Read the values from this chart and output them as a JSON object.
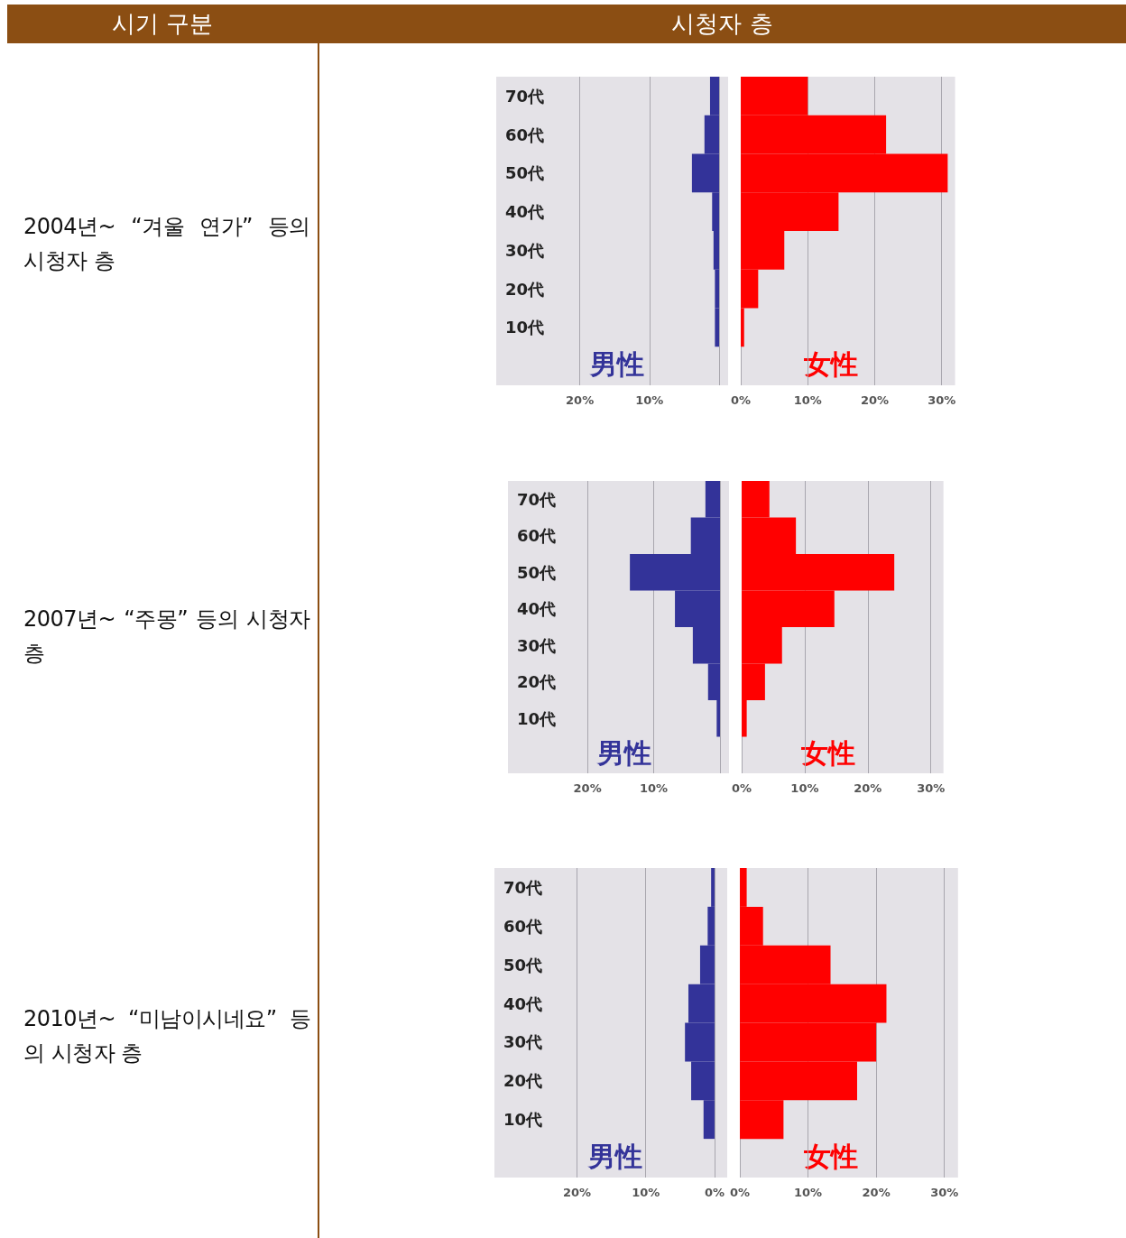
{
  "chart_data": [
    {
      "type": "other",
      "annotations": [
        "시기 구분",
        "시청자 층",
        "2004년~ “겨울 연가” 등의 시청자 층",
        "2007년~ “주몽” 등의 시청자 층",
        "2010년~ “미남이시네요” 등의 시청자 층"
      ]
    },
    {
      "type": "bar",
      "orientation": "horizontal",
      "categories": [
        "70代",
        "60代",
        "50代",
        "40代",
        "30代",
        "20代",
        "10代",
        null
      ],
      "series": [
        {
          "name": "男性",
          "color": "#333399",
          "values": [
            1.3,
            2.1,
            3.9,
            1.0,
            0.8,
            0.6,
            0.6,
            null
          ]
        }
      ],
      "xlim": [
        32,
        0
      ],
      "xticks": [
        {
          "value": 20,
          "label": "20%"
        },
        {
          "value": 10,
          "label": "10%"
        },
        {
          "value": 0,
          "label": null
        }
      ],
      "grid": "x"
    },
    {
      "type": "bar",
      "orientation": "horizontal",
      "categories": [
        null,
        null,
        null,
        null,
        null,
        null,
        null,
        null
      ],
      "series": [
        {
          "name": "女性",
          "color": "#ff0000",
          "values": [
            10.0,
            21.7,
            30.9,
            14.6,
            6.5,
            2.6,
            0.5,
            null
          ]
        }
      ],
      "xlim": [
        0,
        32
      ],
      "xticks": [
        {
          "value": 0,
          "label": "0%"
        },
        {
          "value": 10,
          "label": "10%"
        },
        {
          "value": 20,
          "label": "20%"
        },
        {
          "value": 30,
          "label": "30%"
        }
      ],
      "grid": "x",
      "tick_labels": "x"
    },
    {
      "type": "bar",
      "orientation": "horizontal",
      "categories": [
        "70代",
        "60代",
        "50代",
        "40代",
        "30代",
        "20代",
        "10代",
        null
      ],
      "series": [
        {
          "name": "男性",
          "color": "#333399",
          "values": [
            2.2,
            4.4,
            13.6,
            6.8,
            4.1,
            1.8,
            0.5,
            null
          ]
        }
      ],
      "xlim": [
        32,
        0
      ],
      "xticks": [
        {
          "value": 20,
          "label": "20%"
        },
        {
          "value": 10,
          "label": "10%"
        },
        {
          "value": 0,
          "label": null
        }
      ],
      "grid": "x"
    },
    {
      "type": "bar",
      "orientation": "horizontal",
      "categories": [
        null,
        null,
        null,
        null,
        null,
        null,
        null,
        null
      ],
      "series": [
        {
          "name": "女性",
          "color": "#ff0000",
          "values": [
            4.4,
            8.6,
            24.2,
            14.7,
            6.4,
            3.7,
            0.8,
            null
          ]
        }
      ],
      "xlim": [
        0,
        32
      ],
      "xticks": [
        {
          "value": 0,
          "label": "0%"
        },
        {
          "value": 10,
          "label": "10%"
        },
        {
          "value": 20,
          "label": "20%"
        },
        {
          "value": 30,
          "label": "30%"
        }
      ],
      "grid": "x",
      "tick_labels": "x"
    },
    {
      "type": "bar",
      "orientation": "horizontal",
      "categories": [
        "70代",
        "60代",
        "50代",
        "40代",
        "30代",
        "20代",
        "10代",
        null
      ],
      "series": [
        {
          "name": "男性",
          "color": "#333399",
          "values": [
            0.5,
            1.0,
            2.1,
            3.8,
            4.3,
            3.4,
            1.6,
            null
          ]
        }
      ],
      "xlim": [
        32,
        0
      ],
      "xticks": [
        {
          "value": 20,
          "label": "20%"
        },
        {
          "value": 10,
          "label": "10%"
        },
        {
          "value": 0,
          "label": "0%"
        }
      ],
      "grid": "x"
    },
    {
      "type": "bar",
      "orientation": "horizontal",
      "categories": [
        null,
        null,
        null,
        null,
        null,
        null,
        null,
        null
      ],
      "series": [
        {
          "name": "女性",
          "color": "#ff0000",
          "values": [
            1.0,
            3.4,
            13.3,
            21.5,
            20.0,
            17.2,
            6.4,
            null
          ]
        }
      ],
      "xlim": [
        0,
        32
      ],
      "xticks": [
        {
          "value": 0,
          "label": "0%"
        },
        {
          "value": 10,
          "label": "10%"
        },
        {
          "value": 20,
          "label": "20%"
        },
        {
          "value": 30,
          "label": "30%"
        }
      ],
      "grid": "x",
      "tick_labels": "x"
    }
  ]
}
